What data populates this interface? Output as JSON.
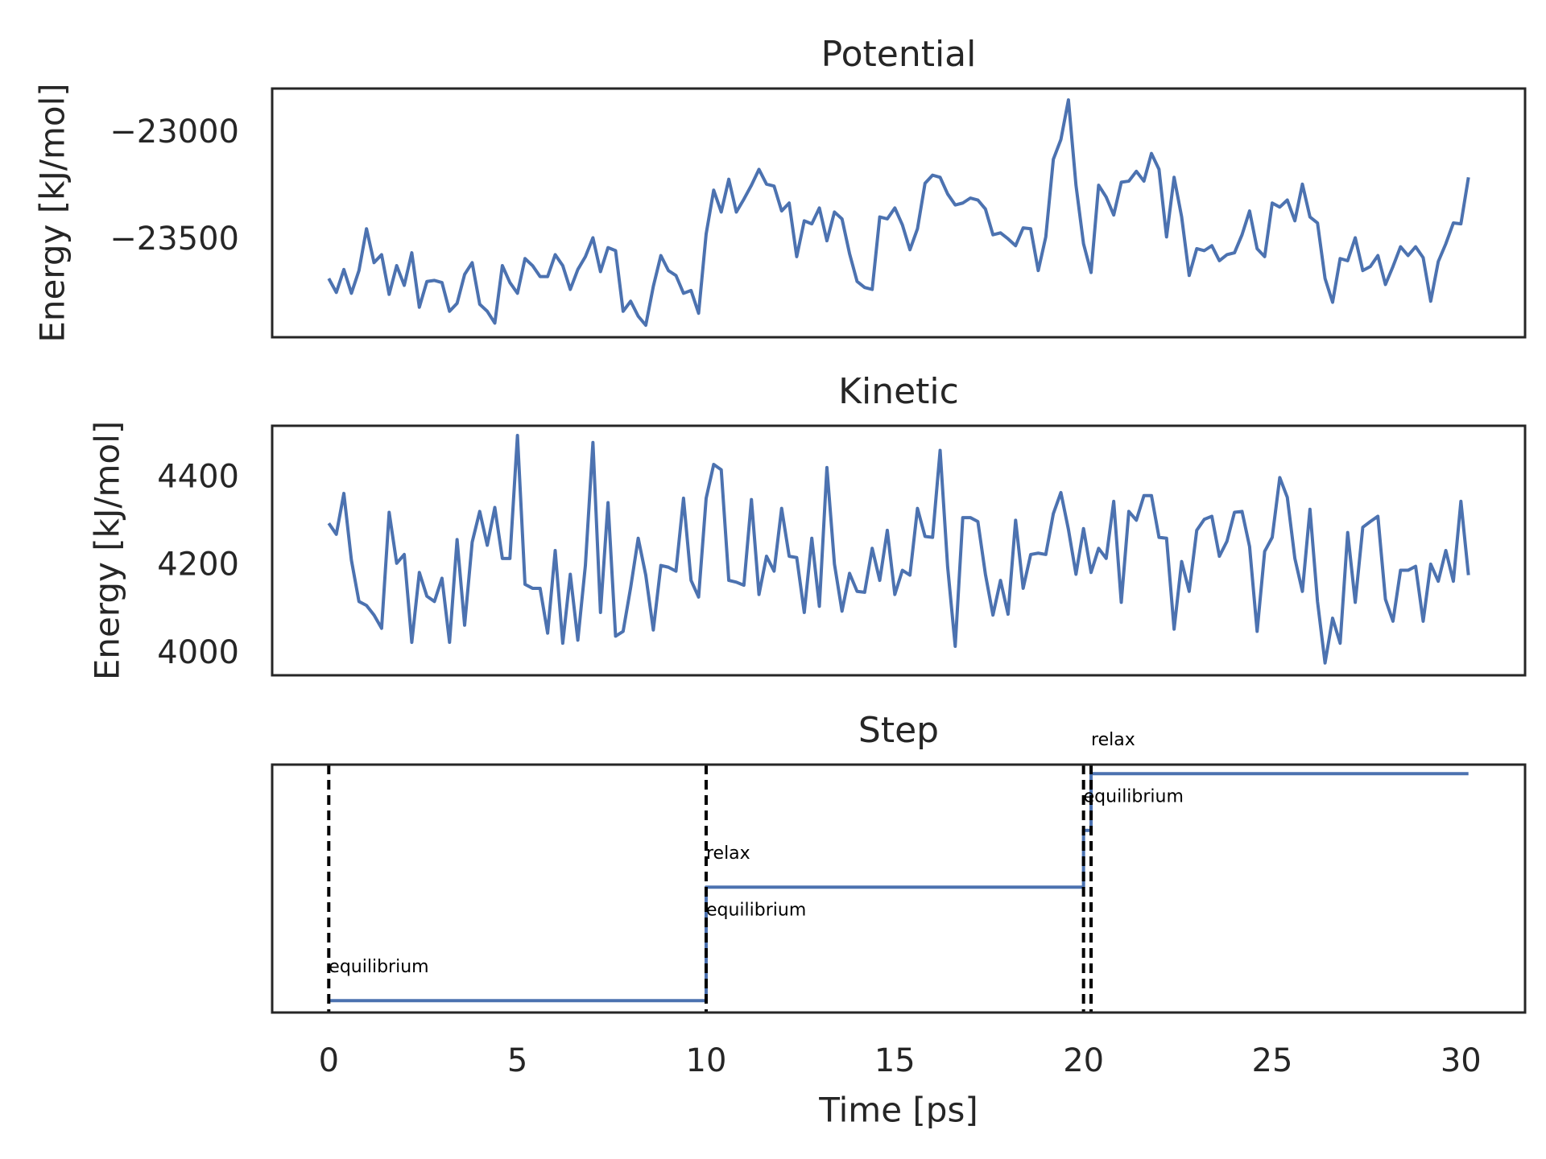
{
  "chart_data": [
    {
      "type": "line",
      "title": "Potential",
      "ylabel": "Energy [kJ/mol]",
      "xlim": [
        -1.5,
        31.7
      ],
      "ylim": [
        -23950,
        -22790
      ],
      "yticks": [
        {
          "value": -23000,
          "label": "−23000"
        },
        {
          "value": -23500,
          "label": "−23500"
        }
      ],
      "x": [
        0,
        0.2,
        0.4,
        0.6,
        0.8,
        1,
        1.2,
        1.4,
        1.6,
        1.8,
        2,
        2.2,
        2.4,
        2.6,
        2.8,
        3,
        3.2,
        3.4,
        3.6,
        3.8,
        4,
        4.2,
        4.4,
        4.6,
        4.8,
        5,
        5.2,
        5.4,
        5.6,
        5.8,
        6,
        6.2,
        6.4,
        6.6,
        6.8,
        7,
        7.2,
        7.4,
        7.6,
        7.8,
        8,
        8.2,
        8.4,
        8.6,
        8.8,
        9,
        9.2,
        9.4,
        9.6,
        9.8,
        10,
        10.2,
        10.4,
        10.6,
        10.8,
        11,
        11.2,
        11.4,
        11.6,
        11.8,
        12,
        12.2,
        12.4,
        12.6,
        12.8,
        13,
        13.2,
        13.4,
        13.6,
        13.8,
        14,
        14.2,
        14.4,
        14.6,
        14.8,
        15,
        15.2,
        15.4,
        15.6,
        15.8,
        16,
        16.2,
        16.4,
        16.6,
        16.8,
        17,
        17.2,
        17.4,
        17.6,
        17.8,
        18,
        18.2,
        18.4,
        18.6,
        18.8,
        19,
        19.2,
        19.4,
        19.6,
        19.8,
        20,
        20.2,
        20.4,
        20.6,
        20.8,
        21,
        21.2,
        21.4,
        21.6,
        21.8,
        22,
        22.2,
        22.4,
        22.6,
        22.8,
        23,
        23.2,
        23.4,
        23.6,
        23.8,
        24,
        24.2,
        24.4,
        24.6,
        24.8,
        25,
        25.2,
        25.4,
        25.6,
        25.8,
        26,
        26.2,
        26.4,
        26.6,
        26.8,
        27,
        27.2,
        27.4,
        27.6,
        27.8,
        28,
        28.2,
        28.4,
        28.6,
        28.8,
        29,
        29.2,
        29.4,
        29.6,
        29.8,
        30,
        30.2
      ],
      "series": [
        {
          "color": "#4c72b0",
          "values": [
            -23676,
            -23741,
            -23634,
            -23745,
            -23639,
            -23444,
            -23602,
            -23565,
            -23750,
            -23616,
            -23708,
            -23556,
            -23810,
            -23690,
            -23685,
            -23695,
            -23829,
            -23792,
            -23657,
            -23602,
            -23796,
            -23829,
            -23884,
            -23616,
            -23695,
            -23745,
            -23583,
            -23616,
            -23667,
            -23667,
            -23565,
            -23616,
            -23727,
            -23634,
            -23574,
            -23486,
            -23644,
            -23532,
            -23546,
            -23829,
            -23782,
            -23852,
            -23894,
            -23713,
            -23569,
            -23639,
            -23662,
            -23745,
            -23732,
            -23838,
            -23468,
            -23264,
            -23366,
            -23213,
            -23366,
            -23306,
            -23241,
            -23167,
            -23236,
            -23245,
            -23361,
            -23324,
            -23574,
            -23407,
            -23421,
            -23347,
            -23500,
            -23366,
            -23398,
            -23560,
            -23690,
            -23718,
            -23727,
            -23389,
            -23398,
            -23347,
            -23426,
            -23542,
            -23444,
            -23232,
            -23194,
            -23204,
            -23282,
            -23333,
            -23324,
            -23301,
            -23310,
            -23352,
            -23472,
            -23463,
            -23491,
            -23523,
            -23440,
            -23444,
            -23639,
            -23482,
            -23120,
            -23028,
            -22843,
            -23241,
            -23514,
            -23648,
            -23241,
            -23296,
            -23380,
            -23227,
            -23222,
            -23176,
            -23222,
            -23093,
            -23167,
            -23482,
            -23204,
            -23389,
            -23662,
            -23537,
            -23546,
            -23523,
            -23593,
            -23565,
            -23556,
            -23472,
            -23361,
            -23537,
            -23574,
            -23324,
            -23343,
            -23310,
            -23407,
            -23236,
            -23389,
            -23417,
            -23676,
            -23787,
            -23583,
            -23593,
            -23486,
            -23639,
            -23620,
            -23569,
            -23704,
            -23620,
            -23528,
            -23569,
            -23528,
            -23579,
            -23782,
            -23597,
            -23514,
            -23417,
            -23421,
            -23204
          ]
        }
      ]
    },
    {
      "type": "line",
      "title": "Kinetic",
      "ylabel": "Energy [kJ/mol]",
      "xlim": [
        -1.5,
        31.7
      ],
      "ylim": [
        3952,
        4520
      ],
      "yticks": [
        4000,
        4200,
        4400
      ],
      "x": [
        0,
        0.2,
        0.4,
        0.6,
        0.8,
        1,
        1.2,
        1.4,
        1.6,
        1.8,
        2,
        2.2,
        2.4,
        2.6,
        2.8,
        3,
        3.2,
        3.4,
        3.6,
        3.8,
        4,
        4.2,
        4.4,
        4.6,
        4.8,
        5,
        5.2,
        5.4,
        5.6,
        5.8,
        6,
        6.2,
        6.4,
        6.6,
        6.8,
        7,
        7.2,
        7.4,
        7.6,
        7.8,
        8,
        8.2,
        8.4,
        8.6,
        8.8,
        9,
        9.2,
        9.4,
        9.6,
        9.8,
        10,
        10.2,
        10.4,
        10.6,
        10.8,
        11,
        11.2,
        11.4,
        11.6,
        11.8,
        12,
        12.2,
        12.4,
        12.6,
        12.8,
        13,
        13.2,
        13.4,
        13.6,
        13.8,
        14,
        14.2,
        14.4,
        14.6,
        14.8,
        15,
        15.2,
        15.4,
        15.6,
        15.8,
        16,
        16.2,
        16.4,
        16.6,
        16.8,
        17,
        17.2,
        17.4,
        17.6,
        17.8,
        18,
        18.2,
        18.4,
        18.6,
        18.8,
        19,
        19.2,
        19.4,
        19.6,
        19.8,
        20,
        20.2,
        20.4,
        20.6,
        20.8,
        21,
        21.2,
        21.4,
        21.6,
        21.8,
        22,
        22.2,
        22.4,
        22.6,
        22.8,
        23,
        23.2,
        23.4,
        23.6,
        23.8,
        24,
        24.2,
        24.4,
        24.6,
        24.8,
        25,
        25.2,
        25.4,
        25.6,
        25.8,
        26,
        26.2,
        26.4,
        26.6,
        26.8,
        27,
        27.2,
        27.4,
        27.6,
        27.8,
        28,
        28.2,
        28.4,
        28.6,
        28.8,
        29,
        29.2,
        29.4,
        29.6,
        29.8,
        30,
        30.2
      ],
      "series": [
        {
          "color": "#4c72b0",
          "values": [
            4298,
            4273,
            4366,
            4214,
            4120,
            4111,
            4089,
            4059,
            4323,
            4207,
            4227,
            4027,
            4186,
            4132,
            4120,
            4173,
            4027,
            4261,
            4066,
            4255,
            4325,
            4248,
            4334,
            4218,
            4218,
            4498,
            4159,
            4150,
            4150,
            4048,
            4236,
            4025,
            4182,
            4032,
            4202,
            4482,
            4095,
            4345,
            4041,
            4052,
            4152,
            4264,
            4180,
            4055,
            4202,
            4198,
            4189,
            4355,
            4168,
            4130,
            4355,
            4432,
            4420,
            4168,
            4164,
            4157,
            4352,
            4136,
            4223,
            4189,
            4332,
            4223,
            4220,
            4095,
            4264,
            4109,
            4425,
            4205,
            4098,
            4184,
            4143,
            4141,
            4241,
            4168,
            4282,
            4136,
            4191,
            4180,
            4332,
            4268,
            4266,
            4464,
            4198,
            4018,
            4311,
            4311,
            4302,
            4182,
            4089,
            4168,
            4091,
            4305,
            4150,
            4227,
            4230,
            4227,
            4320,
            4368,
            4284,
            4182,
            4286,
            4186,
            4241,
            4218,
            4348,
            4118,
            4325,
            4305,
            4361,
            4361,
            4266,
            4264,
            4057,
            4211,
            4143,
            4282,
            4307,
            4314,
            4223,
            4257,
            4323,
            4325,
            4245,
            4052,
            4234,
            4266,
            4402,
            4357,
            4218,
            4143,
            4330,
            4120,
            3980,
            4082,
            4025,
            4277,
            4118,
            4289,
            4302,
            4314,
            4125,
            4075,
            4191,
            4191,
            4200,
            4075,
            4205,
            4166,
            4236,
            4166,
            4348,
            4180
          ]
        }
      ]
    },
    {
      "type": "line",
      "title": "Step",
      "xlabel": "Time [ps]",
      "xlim": [
        -1.5,
        31.7
      ],
      "ylim": [
        -0.105,
        2.08
      ],
      "xticks": [
        0,
        5,
        10,
        15,
        20,
        25,
        30
      ],
      "x": [
        0,
        10,
        10,
        20,
        20,
        20.2,
        20.2,
        30.2
      ],
      "series": [
        {
          "color": "#4c72b0",
          "values": [
            0,
            0,
            1,
            1,
            1.5,
            1.5,
            2,
            2
          ]
        }
      ],
      "vlines": {
        "color": "#000000",
        "x": [
          0,
          10,
          20,
          20.2
        ]
      },
      "annotations": [
        {
          "text": "equilibrium",
          "x": 0,
          "y": 0.25
        },
        {
          "text": "relax",
          "x": 10,
          "y": 1.25
        },
        {
          "text": "equilibrium",
          "x": 10,
          "y": 0.75
        },
        {
          "text": "relax",
          "x": 20.2,
          "y": 2.25
        },
        {
          "text": "equilibrium",
          "x": 20,
          "y": 1.75
        }
      ]
    }
  ]
}
